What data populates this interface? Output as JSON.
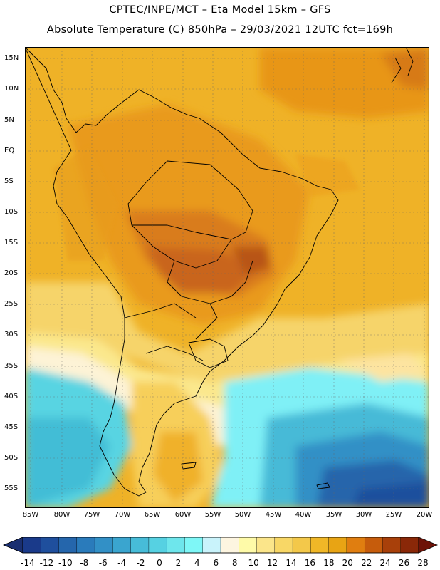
{
  "header": {
    "line1": "CPTEC/INPE/MCT –  Eta Model 15km – GFS",
    "line2": "Absolute Temperature (C) 850hPa – 29/03/2021 12UTC fct=169h"
  },
  "map": {
    "region": "South America",
    "lat_labels": [
      "15N",
      "10N",
      "5N",
      "EQ",
      "5S",
      "10S",
      "15S",
      "20S",
      "25S",
      "30S",
      "35S",
      "40S",
      "45S",
      "50S",
      "55S"
    ],
    "lon_labels": [
      "85W",
      "80W",
      "75W",
      "70W",
      "65W",
      "60W",
      "55W",
      "50W",
      "45W",
      "40W",
      "35W",
      "30W",
      "25W",
      "20W"
    ],
    "lat_range": [
      15,
      -57.5
    ],
    "lon_range": [
      -85.5,
      -20
    ]
  },
  "colorbar": {
    "labels": [
      "-14",
      "-12",
      "-10",
      "-8",
      "-6",
      "-4",
      "-2",
      "0",
      "2",
      "4",
      "6",
      "8",
      "10",
      "12",
      "14",
      "16",
      "18",
      "20",
      "22",
      "24",
      "26",
      "28"
    ],
    "bin_colors": [
      "#1a3a8a",
      "#1f4f9d",
      "#2566ac",
      "#2a7bbb",
      "#3290c6",
      "#3aa5cf",
      "#47bcd8",
      "#56d1e2",
      "#6ee6ec",
      "#7ef7f7",
      "#c9f3fb",
      "#fdf5e0",
      "#fefaa8",
      "#fbe58a",
      "#f8d766",
      "#f3c84a",
      "#f0b727",
      "#e8a414",
      "#e07e10",
      "#c65c0c",
      "#a8400a",
      "#8a2808"
    ],
    "low_arrow_color": "#1a2f70",
    "high_arrow_color": "#6d1208"
  },
  "palette": {
    "ocean_warm": "#efab2a",
    "land_hot": "#dd8a22",
    "land_hotter": "#cc6b1e",
    "coast_line": "#000000"
  }
}
